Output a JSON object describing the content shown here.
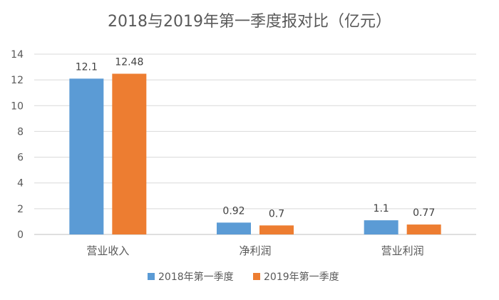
{
  "chart_data": {
    "type": "bar",
    "title": "2018与2019年第一季度报对比（亿元）",
    "categories": [
      "营业收入",
      "净利润",
      "营业利润"
    ],
    "series": [
      {
        "name": "2018年第一季度",
        "values": [
          12.1,
          0.92,
          1.1
        ],
        "labels": [
          "12.1",
          "0.92",
          "1.1"
        ],
        "color": "#5B9BD5"
      },
      {
        "name": "2019年第一季度",
        "values": [
          12.48,
          0.7,
          0.77
        ],
        "labels": [
          "12.48",
          "0.7",
          "0.77"
        ],
        "color": "#ED7D31"
      }
    ],
    "yticks": [
      "0",
      "2",
      "4",
      "6",
      "8",
      "10",
      "12",
      "14"
    ],
    "ylim": [
      0,
      14
    ],
    "grid": true,
    "legend": "bottom"
  }
}
